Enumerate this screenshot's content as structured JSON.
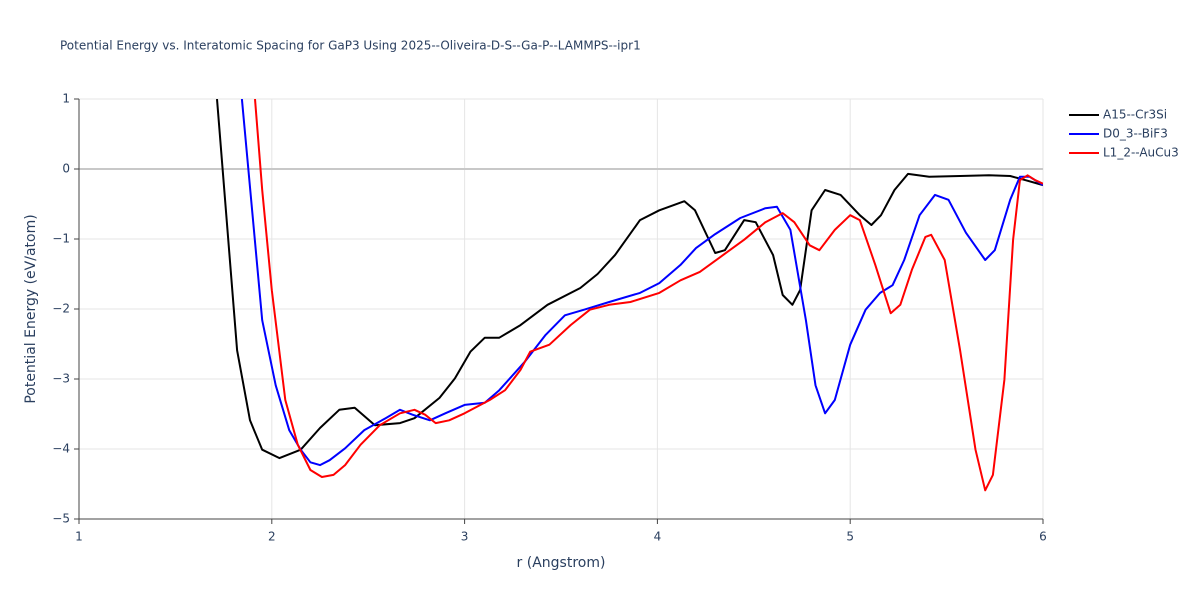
{
  "chart_data": {
    "type": "line",
    "title": "Potential Energy vs. Interatomic Spacing for GaP3 Using 2025--Oliveira-D-S--Ga-P--LAMMPS--ipr1",
    "x_label": "r (Angstrom)",
    "y_label": "Potential Energy (eV/atom)",
    "xlim": [
      1,
      6
    ],
    "ylim": [
      -5,
      1
    ],
    "xticks": [
      1,
      2,
      3,
      4,
      5,
      6
    ],
    "yticks": [
      1,
      0,
      {
        "value": -1,
        "label": "−1"
      },
      {
        "value": -2,
        "label": "−2"
      },
      {
        "value": -3,
        "label": "−3"
      },
      {
        "value": -4,
        "label": "−4"
      },
      {
        "value": -5,
        "label": "−5"
      }
    ],
    "grid": true,
    "legend": "right",
    "series": [
      {
        "name": "A15--Cr3Si",
        "color": "#000000",
        "x": [
          1.716,
          1.82,
          1.887,
          1.95,
          2.04,
          2.15,
          2.25,
          2.35,
          2.43,
          2.535,
          2.665,
          2.74,
          2.87,
          2.95,
          3.03,
          3.105,
          3.18,
          3.29,
          3.43,
          3.6,
          3.69,
          3.78,
          3.91,
          4.01,
          4.09,
          4.14,
          4.195,
          4.3,
          4.35,
          4.45,
          4.51,
          4.6,
          4.65,
          4.7,
          4.74,
          4.8,
          4.87,
          4.95,
          5.05,
          5.11,
          5.16,
          5.23,
          5.3,
          5.41,
          5.57,
          5.72,
          5.83,
          5.91,
          6.0
        ],
        "values": [
          1.0,
          -2.59,
          -3.59,
          -4.01,
          -4.13,
          -4.01,
          -3.7,
          -3.44,
          -3.41,
          -3.66,
          -3.63,
          -3.56,
          -3.27,
          -2.99,
          -2.61,
          -2.41,
          -2.41,
          -2.23,
          -1.94,
          -1.7,
          -1.5,
          -1.23,
          -0.73,
          -0.59,
          -0.51,
          -0.46,
          -0.59,
          -1.2,
          -1.16,
          -0.73,
          -0.76,
          -1.23,
          -1.8,
          -1.94,
          -1.73,
          -0.59,
          -0.3,
          -0.37,
          -0.66,
          -0.8,
          -0.66,
          -0.3,
          -0.07,
          -0.11,
          -0.1,
          -0.09,
          -0.1,
          -0.16,
          -0.23
        ]
      },
      {
        "name": "D0_3--BiF3",
        "color": "#0000ff",
        "x": [
          1.845,
          1.95,
          2.02,
          2.09,
          2.15,
          2.2,
          2.25,
          2.3,
          2.38,
          2.48,
          2.59,
          2.665,
          2.73,
          2.82,
          2.9,
          3.0,
          3.105,
          3.18,
          3.31,
          3.42,
          3.52,
          3.62,
          3.75,
          3.91,
          4.01,
          4.12,
          4.2,
          4.3,
          4.43,
          4.56,
          4.62,
          4.69,
          4.77,
          4.82,
          4.87,
          4.92,
          5.0,
          5.08,
          5.155,
          5.22,
          5.28,
          5.36,
          5.44,
          5.51,
          5.6,
          5.7,
          5.75,
          5.83,
          5.88,
          5.93,
          6.0
        ],
        "values": [
          1.0,
          -2.16,
          -3.09,
          -3.73,
          -4.01,
          -4.19,
          -4.23,
          -4.16,
          -3.99,
          -3.73,
          -3.56,
          -3.44,
          -3.51,
          -3.59,
          -3.49,
          -3.37,
          -3.34,
          -3.16,
          -2.76,
          -2.37,
          -2.09,
          -2.01,
          -1.9,
          -1.77,
          -1.63,
          -1.37,
          -1.13,
          -0.93,
          -0.7,
          -0.56,
          -0.54,
          -0.87,
          -2.16,
          -3.09,
          -3.49,
          -3.3,
          -2.51,
          -2.01,
          -1.77,
          -1.66,
          -1.3,
          -0.66,
          -0.37,
          -0.44,
          -0.91,
          -1.3,
          -1.16,
          -0.44,
          -0.11,
          -0.11,
          -0.23
        ]
      },
      {
        "name": "L1_2--AuCu3",
        "color": "#ff0000",
        "x": [
          1.913,
          1.95,
          2.0,
          2.07,
          2.135,
          2.2,
          2.26,
          2.32,
          2.38,
          2.46,
          2.56,
          2.665,
          2.74,
          2.795,
          2.85,
          2.92,
          3.0,
          3.13,
          3.21,
          3.29,
          3.34,
          3.44,
          3.55,
          3.65,
          3.75,
          3.86,
          4.01,
          4.12,
          4.22,
          4.32,
          4.45,
          4.56,
          4.65,
          4.71,
          4.79,
          4.84,
          4.92,
          5.0,
          5.05,
          5.13,
          5.21,
          5.26,
          5.32,
          5.39,
          5.42,
          5.49,
          5.57,
          5.65,
          5.7,
          5.74,
          5.8,
          5.845,
          5.88,
          5.92,
          5.96,
          6.0
        ],
        "values": [
          1.0,
          -0.3,
          -1.73,
          -3.3,
          -3.94,
          -4.3,
          -4.4,
          -4.37,
          -4.23,
          -3.94,
          -3.66,
          -3.49,
          -3.44,
          -3.51,
          -3.63,
          -3.59,
          -3.49,
          -3.3,
          -3.16,
          -2.87,
          -2.61,
          -2.51,
          -2.23,
          -2.01,
          -1.94,
          -1.9,
          -1.77,
          -1.59,
          -1.47,
          -1.27,
          -1.01,
          -0.76,
          -0.63,
          -0.76,
          -1.09,
          -1.16,
          -0.87,
          -0.66,
          -0.73,
          -1.37,
          -2.06,
          -1.94,
          -1.44,
          -0.97,
          -0.94,
          -1.3,
          -2.59,
          -4.01,
          -4.59,
          -4.37,
          -3.01,
          -1.01,
          -0.16,
          -0.09,
          -0.16,
          -0.21
        ]
      }
    ]
  }
}
